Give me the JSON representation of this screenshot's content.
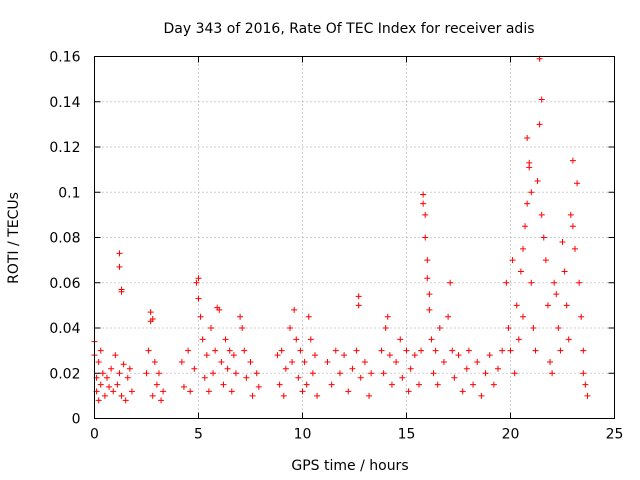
{
  "chart_data": {
    "type": "scatter",
    "title": "Day 343 of 2016, Rate Of TEC Index for receiver adis",
    "xlabel": "GPS time / hours",
    "ylabel": "ROTI / TECUs",
    "xlim": [
      0,
      25
    ],
    "ylim": [
      0,
      0.16
    ],
    "x_ticks": [
      0,
      5,
      10,
      15,
      20,
      25
    ],
    "x_tick_labels": [
      "0",
      "5",
      "10",
      "15",
      "20",
      "25"
    ],
    "y_ticks": [
      0,
      0.02,
      0.04,
      0.06,
      0.08,
      0.1,
      0.12,
      0.14,
      0.16
    ],
    "y_tick_labels": [
      "0",
      "0.02",
      "0.04",
      "0.06",
      "0.08",
      "0.1",
      "0.12",
      "0.14",
      "0.16"
    ],
    "grid": true,
    "marker": "+",
    "color": "#ff0000",
    "series": [
      {
        "values": [
          [
            0.0,
            0.028
          ],
          [
            0.0,
            0.034
          ],
          [
            0.1,
            0.018
          ],
          [
            0.1,
            0.012
          ],
          [
            0.2,
            0.025
          ],
          [
            0.2,
            0.008
          ],
          [
            0.3,
            0.03
          ],
          [
            0.3,
            0.015
          ],
          [
            0.4,
            0.02
          ],
          [
            0.5,
            0.01
          ],
          [
            0.6,
            0.018
          ],
          [
            0.7,
            0.014
          ],
          [
            0.8,
            0.022
          ],
          [
            0.9,
            0.012
          ],
          [
            1.0,
            0.028
          ],
          [
            1.1,
            0.015
          ],
          [
            1.2,
            0.073
          ],
          [
            1.2,
            0.067
          ],
          [
            1.3,
            0.057
          ],
          [
            1.3,
            0.056
          ],
          [
            1.2,
            0.02
          ],
          [
            1.3,
            0.01
          ],
          [
            1.4,
            0.024
          ],
          [
            1.5,
            0.008
          ],
          [
            1.6,
            0.018
          ],
          [
            1.7,
            0.022
          ],
          [
            1.8,
            0.012
          ],
          [
            2.5,
            0.02
          ],
          [
            2.6,
            0.03
          ],
          [
            2.7,
            0.047
          ],
          [
            2.7,
            0.043
          ],
          [
            2.8,
            0.044
          ],
          [
            2.8,
            0.01
          ],
          [
            2.9,
            0.025
          ],
          [
            3.0,
            0.015
          ],
          [
            3.1,
            0.02
          ],
          [
            3.2,
            0.008
          ],
          [
            3.3,
            0.012
          ],
          [
            4.2,
            0.025
          ],
          [
            4.3,
            0.014
          ],
          [
            4.5,
            0.03
          ],
          [
            4.6,
            0.012
          ],
          [
            4.8,
            0.022
          ],
          [
            4.9,
            0.06
          ],
          [
            5.0,
            0.062
          ],
          [
            5.0,
            0.053
          ],
          [
            5.1,
            0.045
          ],
          [
            5.2,
            0.035
          ],
          [
            5.3,
            0.018
          ],
          [
            5.4,
            0.028
          ],
          [
            5.5,
            0.012
          ],
          [
            5.6,
            0.04
          ],
          [
            5.7,
            0.02
          ],
          [
            5.8,
            0.03
          ],
          [
            5.9,
            0.049
          ],
          [
            6.0,
            0.048
          ],
          [
            6.1,
            0.025
          ],
          [
            6.2,
            0.015
          ],
          [
            6.3,
            0.035
          ],
          [
            6.4,
            0.022
          ],
          [
            6.5,
            0.03
          ],
          [
            6.6,
            0.012
          ],
          [
            6.7,
            0.028
          ],
          [
            6.8,
            0.02
          ],
          [
            7.0,
            0.045
          ],
          [
            7.1,
            0.04
          ],
          [
            7.2,
            0.03
          ],
          [
            7.3,
            0.018
          ],
          [
            7.5,
            0.025
          ],
          [
            7.6,
            0.01
          ],
          [
            7.8,
            0.02
          ],
          [
            7.9,
            0.014
          ],
          [
            8.8,
            0.028
          ],
          [
            8.9,
            0.015
          ],
          [
            9.0,
            0.03
          ],
          [
            9.1,
            0.01
          ],
          [
            9.2,
            0.022
          ],
          [
            9.4,
            0.04
          ],
          [
            9.5,
            0.025
          ],
          [
            9.6,
            0.048
          ],
          [
            9.7,
            0.035
          ],
          [
            9.8,
            0.018
          ],
          [
            9.9,
            0.03
          ],
          [
            10.0,
            0.012
          ],
          [
            10.1,
            0.025
          ],
          [
            10.2,
            0.015
          ],
          [
            10.3,
            0.045
          ],
          [
            10.4,
            0.035
          ],
          [
            10.5,
            0.02
          ],
          [
            10.6,
            0.028
          ],
          [
            10.7,
            0.01
          ],
          [
            11.2,
            0.025
          ],
          [
            11.4,
            0.015
          ],
          [
            11.6,
            0.03
          ],
          [
            11.8,
            0.02
          ],
          [
            12.0,
            0.028
          ],
          [
            12.2,
            0.012
          ],
          [
            12.4,
            0.022
          ],
          [
            12.6,
            0.03
          ],
          [
            12.7,
            0.054
          ],
          [
            12.7,
            0.05
          ],
          [
            12.8,
            0.018
          ],
          [
            13.0,
            0.025
          ],
          [
            13.2,
            0.01
          ],
          [
            13.3,
            0.02
          ],
          [
            13.8,
            0.03
          ],
          [
            13.9,
            0.02
          ],
          [
            14.0,
            0.04
          ],
          [
            14.1,
            0.045
          ],
          [
            14.2,
            0.028
          ],
          [
            14.3,
            0.015
          ],
          [
            14.5,
            0.025
          ],
          [
            14.7,
            0.035
          ],
          [
            14.8,
            0.018
          ],
          [
            15.0,
            0.03
          ],
          [
            15.1,
            0.012
          ],
          [
            15.2,
            0.022
          ],
          [
            15.4,
            0.028
          ],
          [
            15.6,
            0.015
          ],
          [
            15.7,
            0.03
          ],
          [
            15.8,
            0.099
          ],
          [
            15.8,
            0.095
          ],
          [
            15.9,
            0.09
          ],
          [
            15.9,
            0.08
          ],
          [
            16.0,
            0.07
          ],
          [
            16.0,
            0.062
          ],
          [
            16.1,
            0.055
          ],
          [
            16.1,
            0.048
          ],
          [
            16.2,
            0.035
          ],
          [
            16.3,
            0.02
          ],
          [
            16.4,
            0.03
          ],
          [
            16.5,
            0.015
          ],
          [
            16.6,
            0.04
          ],
          [
            16.8,
            0.025
          ],
          [
            17.0,
            0.045
          ],
          [
            17.1,
            0.06
          ],
          [
            17.2,
            0.03
          ],
          [
            17.3,
            0.018
          ],
          [
            17.5,
            0.028
          ],
          [
            17.7,
            0.012
          ],
          [
            17.9,
            0.022
          ],
          [
            18.0,
            0.03
          ],
          [
            18.2,
            0.015
          ],
          [
            18.4,
            0.025
          ],
          [
            18.6,
            0.01
          ],
          [
            18.8,
            0.02
          ],
          [
            19.0,
            0.028
          ],
          [
            19.2,
            0.015
          ],
          [
            19.4,
            0.022
          ],
          [
            19.6,
            0.03
          ],
          [
            19.8,
            0.06
          ],
          [
            19.9,
            0.04
          ],
          [
            20.0,
            0.03
          ],
          [
            20.1,
            0.07
          ],
          [
            20.2,
            0.02
          ],
          [
            20.3,
            0.05
          ],
          [
            20.4,
            0.035
          ],
          [
            20.5,
            0.065
          ],
          [
            20.6,
            0.075
          ],
          [
            20.6,
            0.045
          ],
          [
            20.7,
            0.085
          ],
          [
            20.8,
            0.095
          ],
          [
            20.8,
            0.124
          ],
          [
            20.9,
            0.113
          ],
          [
            20.9,
            0.111
          ],
          [
            21.0,
            0.1
          ],
          [
            21.0,
            0.06
          ],
          [
            21.1,
            0.04
          ],
          [
            21.2,
            0.03
          ],
          [
            21.3,
            0.105
          ],
          [
            21.4,
            0.159
          ],
          [
            21.4,
            0.13
          ],
          [
            21.5,
            0.141
          ],
          [
            21.5,
            0.09
          ],
          [
            21.6,
            0.08
          ],
          [
            21.7,
            0.07
          ],
          [
            21.8,
            0.05
          ],
          [
            21.9,
            0.025
          ],
          [
            22.0,
            0.02
          ],
          [
            22.1,
            0.06
          ],
          [
            22.2,
            0.055
          ],
          [
            22.3,
            0.04
          ],
          [
            22.4,
            0.03
          ],
          [
            22.5,
            0.078
          ],
          [
            22.6,
            0.065
          ],
          [
            22.7,
            0.05
          ],
          [
            22.8,
            0.035
          ],
          [
            22.9,
            0.09
          ],
          [
            23.0,
            0.085
          ],
          [
            23.0,
            0.114
          ],
          [
            23.1,
            0.075
          ],
          [
            23.2,
            0.104
          ],
          [
            23.3,
            0.06
          ],
          [
            23.4,
            0.045
          ],
          [
            23.5,
            0.03
          ],
          [
            23.5,
            0.02
          ],
          [
            23.6,
            0.015
          ],
          [
            23.7,
            0.01
          ]
        ]
      }
    ]
  }
}
